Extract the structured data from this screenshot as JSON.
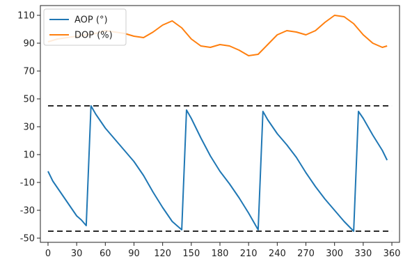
{
  "chart_data": {
    "type": "line",
    "title": "",
    "xlabel": "",
    "ylabel": "",
    "xlim": [
      -8,
      368
    ],
    "ylim": [
      -53,
      117
    ],
    "xticks": [
      0,
      30,
      60,
      90,
      120,
      150,
      180,
      210,
      240,
      270,
      300,
      330,
      360
    ],
    "yticks": [
      -50,
      -30,
      -10,
      10,
      30,
      50,
      70,
      90,
      110
    ],
    "grid": false,
    "legend": "top-left",
    "series": [
      {
        "name": "AOP (°)",
        "color": "#1f77b4",
        "x": [
          0,
          5,
          10,
          20,
          30,
          35,
          40,
          45,
          50,
          60,
          70,
          80,
          90,
          100,
          110,
          120,
          130,
          140,
          145,
          150,
          160,
          170,
          180,
          190,
          200,
          210,
          220,
          225,
          230,
          240,
          250,
          260,
          270,
          280,
          290,
          300,
          310,
          320,
          325,
          330,
          340,
          350,
          355
        ],
        "y": [
          -2,
          -9,
          -14,
          -24,
          -34,
          -37,
          -41,
          45,
          39,
          29,
          21,
          13,
          5,
          -5,
          -17,
          -28,
          -38,
          -44,
          42,
          36,
          22,
          9,
          -2,
          -11,
          -21,
          -32,
          -44,
          41,
          35,
          25,
          17,
          8,
          -3,
          -13,
          -22,
          -30,
          -38,
          -45,
          41,
          36,
          24,
          13,
          6
        ]
      },
      {
        "name": "DOP (%)",
        "color": "#ff7f0e",
        "x": [
          0,
          10,
          20,
          30,
          40,
          50,
          60,
          70,
          80,
          90,
          100,
          110,
          120,
          130,
          140,
          150,
          160,
          170,
          180,
          190,
          200,
          210,
          220,
          230,
          240,
          250,
          260,
          270,
          280,
          290,
          300,
          310,
          320,
          330,
          340,
          350,
          355
        ],
        "y": [
          91,
          93,
          94,
          95,
          96,
          97,
          99,
          98,
          97,
          95,
          94,
          98,
          103,
          106,
          101,
          93,
          88,
          87,
          89,
          88,
          85,
          81,
          82,
          89,
          96,
          99,
          98,
          96,
          99,
          105,
          110,
          109,
          104,
          96,
          90,
          87,
          88
        ]
      },
      {
        "name": "",
        "color": "#2b2b2b",
        "dashed": true,
        "x": [
          0,
          360
        ],
        "y": [
          45,
          45
        ]
      },
      {
        "name": "",
        "color": "#2b2b2b",
        "dashed": true,
        "x": [
          0,
          360
        ],
        "y": [
          -45,
          -45
        ]
      }
    ]
  }
}
